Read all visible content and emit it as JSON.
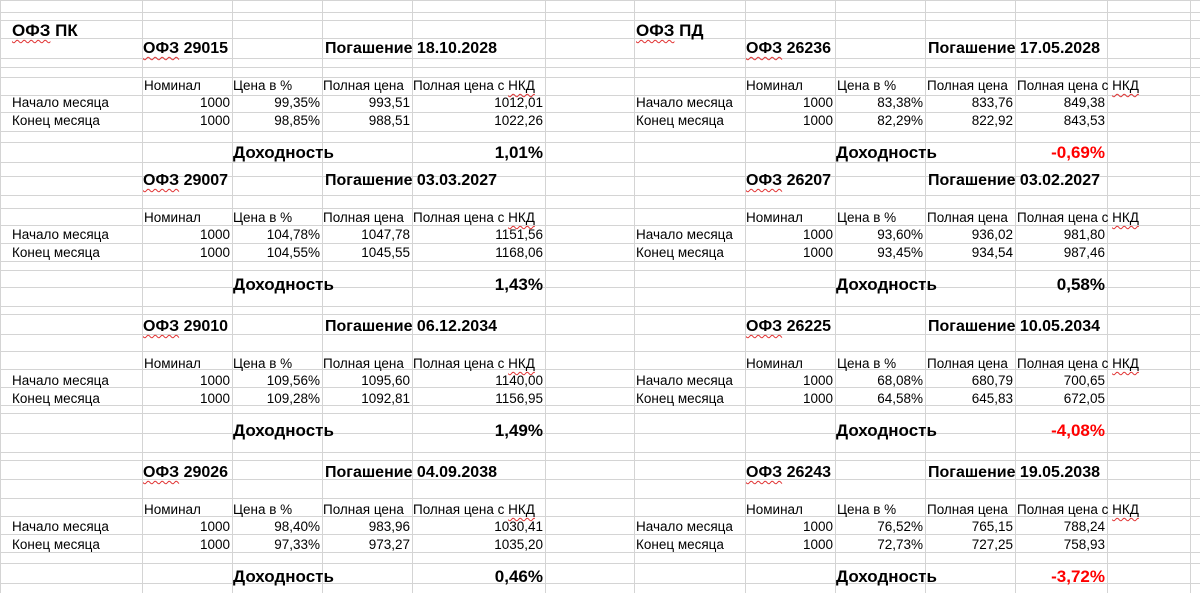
{
  "left": {
    "title": "ОФЗ ПК",
    "bonds": [
      {
        "name": "ОФЗ 29015",
        "maturity": "Погашение 18.10.2028",
        "start": [
          "1000",
          "99,35%",
          "993,51",
          "1012,01"
        ],
        "end": [
          "1000",
          "98,85%",
          "988,51",
          "1022,26"
        ],
        "yield": "1,01%",
        "negative": false
      },
      {
        "name": "ОФЗ 29007",
        "maturity": "Погашение 03.03.2027",
        "start": [
          "1000",
          "104,78%",
          "1047,78",
          "1151,56"
        ],
        "end": [
          "1000",
          "104,55%",
          "1045,55",
          "1168,06"
        ],
        "yield": "1,43%",
        "negative": false
      },
      {
        "name": "ОФЗ 29010",
        "maturity": "Погашение 06.12.2034",
        "start": [
          "1000",
          "109,56%",
          "1095,60",
          "1140,00"
        ],
        "end": [
          "1000",
          "109,28%",
          "1092,81",
          "1156,95"
        ],
        "yield": "1,49%",
        "negative": false
      },
      {
        "name": "ОФЗ 29026",
        "maturity": "Погашение 04.09.2038",
        "start": [
          "1000",
          "98,40%",
          "983,96",
          "1030,41"
        ],
        "end": [
          "1000",
          "97,33%",
          "973,27",
          "1035,20"
        ],
        "yield": "0,46%",
        "negative": false
      }
    ]
  },
  "right": {
    "title": "ОФЗ ПД",
    "bonds": [
      {
        "name": "ОФЗ 26236",
        "maturity": "Погашение 17.05.2028",
        "start": [
          "1000",
          "83,38%",
          "833,76",
          "849,38"
        ],
        "end": [
          "1000",
          "82,29%",
          "822,92",
          "843,53"
        ],
        "yield": "-0,69%",
        "negative": true
      },
      {
        "name": "ОФЗ 26207",
        "maturity": "Погашение 03.02.2027",
        "start": [
          "1000",
          "93,60%",
          "936,02",
          "981,80"
        ],
        "end": [
          "1000",
          "93,45%",
          "934,54",
          "987,46"
        ],
        "yield": "0,58%",
        "negative": false
      },
      {
        "name": "ОФЗ 26225",
        "maturity": "Погашение 10.05.2034",
        "start": [
          "1000",
          "68,08%",
          "680,79",
          "700,65"
        ],
        "end": [
          "1000",
          "64,58%",
          "645,83",
          "672,05"
        ],
        "yield": "-4,08%",
        "negative": true
      },
      {
        "name": "ОФЗ 26243",
        "maturity": "Погашение 19.05.2038",
        "start": [
          "1000",
          "76,52%",
          "765,15",
          "788,24"
        ],
        "end": [
          "1000",
          "72,73%",
          "727,25",
          "758,93"
        ],
        "yield": "-3,72%",
        "negative": true
      }
    ]
  },
  "labels": {
    "columns": [
      "Номинал",
      "Цена в %",
      "Полная цена",
      "Полная цена с НКД"
    ],
    "row_start": "Начало месяца",
    "row_end": "Конец месяца",
    "yield_label": "Доходность"
  },
  "colors": {
    "grid": "#d4d4d4",
    "negative": "#ff0000"
  }
}
